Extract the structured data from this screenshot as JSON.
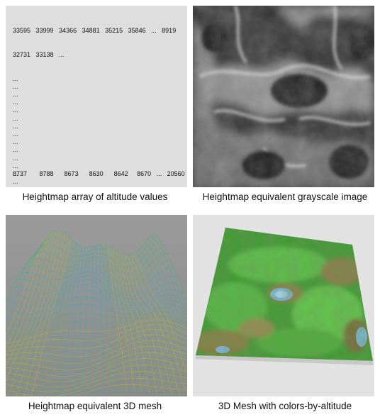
{
  "panels": {
    "array": {
      "caption": "Heightmap array of altitude values",
      "row1": "33595   33999   34366   34881   35215   35846   ...   8919",
      "row2": "32731   33138   ...",
      "ellipsis": "...",
      "ellipsis_count": 17,
      "last_row": "8737       8788      8673      8630      8642     8670   ...   20560"
    },
    "gray": {
      "caption": "Heightmap equivalent grayscale image"
    },
    "mesh": {
      "caption": "Heightmap equivalent 3D mesh"
    },
    "colored": {
      "caption": "3D Mesh with colors-by-altitude"
    }
  },
  "colors": {
    "background": "#ffffff",
    "array_panel": "#dedede",
    "mesh_background": "#8f8f8f",
    "terrain_green": "#4caf3a",
    "terrain_brown": "#8a7a4a",
    "water_blue": "#6fa8d8"
  }
}
